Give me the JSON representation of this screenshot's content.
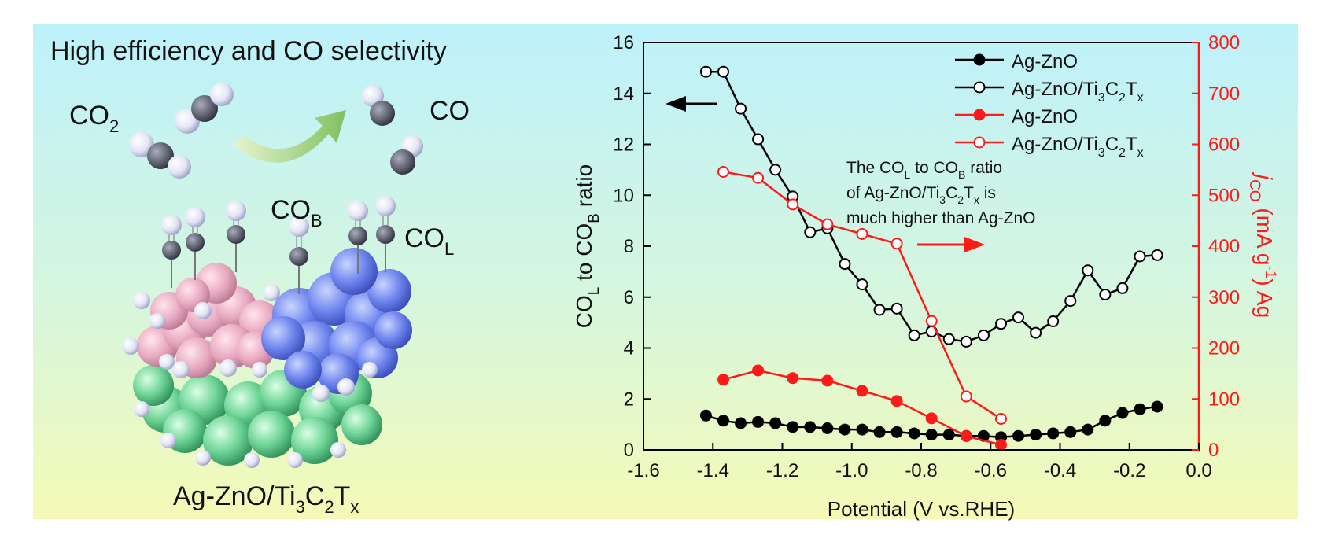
{
  "graphic": {
    "headline": "High efficiency and CO selectivity",
    "co2_main": "CO",
    "co2_sub": "2",
    "co_label": "CO",
    "cob_main": "CO",
    "cob_sub": "B",
    "col_main": "CO",
    "col_sub": "L",
    "caption_parts": [
      "Ag-ZnO/Ti",
      "3",
      "C",
      "2",
      "T",
      "x"
    ]
  },
  "chart_data": {
    "type": "line",
    "title": "",
    "xlabel": "Potential (V vs.RHE)",
    "xlim": [
      -1.6,
      0.0
    ],
    "x_ticks": [
      -1.6,
      -1.4,
      -1.2,
      -1.0,
      -0.8,
      -0.6,
      -0.4,
      -0.2,
      0.0
    ],
    "x_tick_labels": [
      "-1.6",
      "-1.4",
      "-1.2",
      "-1.0",
      "-0.8",
      "-0.6",
      "-0.4",
      "-0.2",
      "0.0"
    ],
    "y_left": {
      "label_parts": [
        "CO",
        "L",
        " to CO",
        "B",
        " ratio"
      ],
      "lim": [
        0,
        16
      ],
      "ticks": [
        0,
        2,
        4,
        6,
        8,
        10,
        12,
        14,
        16
      ],
      "tick_labels": [
        "0",
        "2",
        "4",
        "6",
        "8",
        "10",
        "12",
        "14",
        "16"
      ]
    },
    "y_right": {
      "label_parts": [
        "j",
        "CO",
        " (mA g",
        "-1",
        ") Ag"
      ],
      "lim": [
        0,
        800
      ],
      "ticks": [
        0,
        100,
        200,
        300,
        400,
        500,
        600,
        700,
        800
      ],
      "tick_labels": [
        "0",
        "100",
        "200",
        "300",
        "400",
        "500",
        "600",
        "700",
        "800"
      ],
      "color": "#ff1a1a"
    },
    "legend_position": "top-right",
    "series": [
      {
        "name": "Ag-ZnO",
        "legend_parts": [
          "Ag-ZnO"
        ],
        "axis": "left",
        "color": "#000000",
        "marker": "filled",
        "x": [
          -1.42,
          -1.37,
          -1.32,
          -1.27,
          -1.22,
          -1.17,
          -1.12,
          -1.07,
          -1.02,
          -0.97,
          -0.92,
          -0.87,
          -0.82,
          -0.77,
          -0.72,
          -0.67,
          -0.62,
          -0.57,
          -0.52,
          -0.47,
          -0.42,
          -0.37,
          -0.32,
          -0.27,
          -0.22,
          -0.17,
          -0.12
        ],
        "y": [
          1.35,
          1.15,
          1.05,
          1.1,
          1.05,
          0.9,
          0.9,
          0.85,
          0.8,
          0.8,
          0.7,
          0.7,
          0.65,
          0.6,
          0.6,
          0.55,
          0.55,
          0.5,
          0.55,
          0.6,
          0.65,
          0.7,
          0.8,
          1.15,
          1.45,
          1.6,
          1.7
        ]
      },
      {
        "name": "Ag-ZnO/Ti3C2Tx",
        "legend_parts": [
          "Ag-ZnO/Ti",
          "3",
          "C",
          "2",
          "T",
          "x"
        ],
        "axis": "left",
        "color": "#000000",
        "marker": "open",
        "x": [
          -1.42,
          -1.37,
          -1.32,
          -1.27,
          -1.22,
          -1.17,
          -1.12,
          -1.07,
          -1.02,
          -0.97,
          -0.92,
          -0.87,
          -0.82,
          -0.77,
          -0.72,
          -0.67,
          -0.62,
          -0.57,
          -0.52,
          -0.47,
          -0.42,
          -0.37,
          -0.32,
          -0.27,
          -0.22,
          -0.17,
          -0.12
        ],
        "y": [
          14.85,
          14.85,
          13.4,
          12.2,
          11.0,
          9.95,
          8.55,
          8.7,
          7.3,
          6.5,
          5.5,
          5.55,
          4.5,
          4.65,
          4.35,
          4.25,
          4.5,
          4.95,
          5.2,
          4.6,
          5.05,
          5.85,
          7.05,
          6.1,
          6.35,
          7.6,
          7.65
        ]
      },
      {
        "name": "Ag-ZnO",
        "legend_parts": [
          "Ag-ZnO"
        ],
        "axis": "right",
        "color": "#ff1a1a",
        "marker": "filled",
        "x": [
          -1.37,
          -1.27,
          -1.17,
          -1.07,
          -0.97,
          -0.87,
          -0.77,
          -0.67,
          -0.57
        ],
        "y": [
          138,
          156,
          141,
          136,
          116,
          96,
          62,
          27,
          10
        ]
      },
      {
        "name": "Ag-ZnO/Ti3C2Tx",
        "legend_parts": [
          "Ag-ZnO/Ti",
          "3",
          "C",
          "2",
          "T",
          "x"
        ],
        "axis": "right",
        "color": "#ff1a1a",
        "marker": "open",
        "x": [
          -1.37,
          -1.27,
          -1.17,
          -1.07,
          -0.97,
          -0.87,
          -0.77,
          -0.67,
          -0.57
        ],
        "y": [
          546,
          534,
          482,
          443,
          424,
          405,
          253,
          105,
          61
        ]
      }
    ],
    "annotation": {
      "line1_parts": [
        "The CO",
        "L",
        " to CO",
        "B",
        " ratio"
      ],
      "line2_parts": [
        "of Ag-ZnO/Ti",
        "3",
        "C",
        "2",
        "T",
        "x",
        " is"
      ],
      "line3": "much higher than Ag-ZnO"
    }
  }
}
